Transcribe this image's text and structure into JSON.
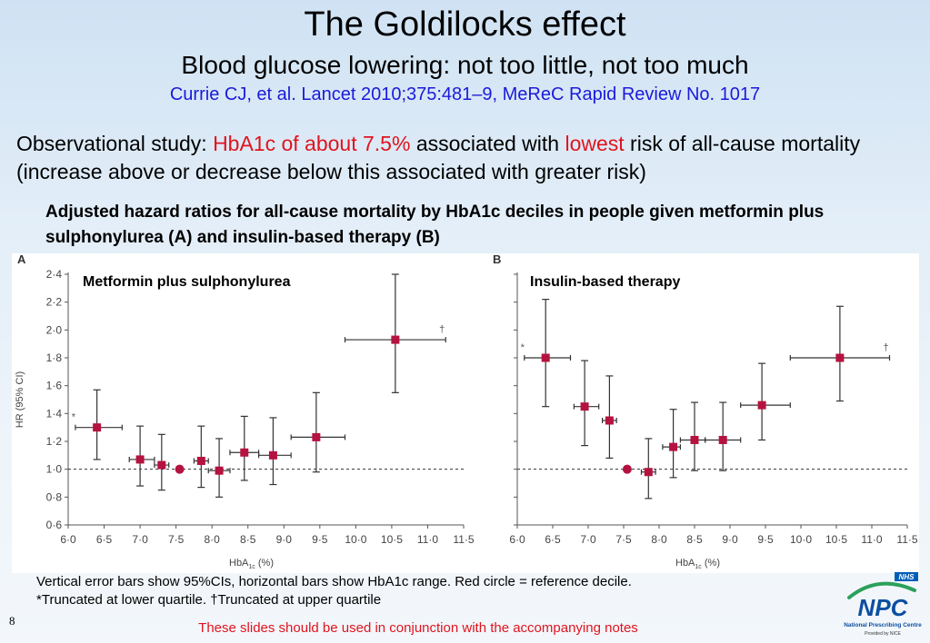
{
  "slide": {
    "title": "The Goldilocks effect",
    "subtitle": "Blood glucose lowering: not too little, not too much",
    "citation": "Currie CJ, et al. Lancet 2010;375:481–9, MeReC Rapid Review No. 1017",
    "statement": {
      "part1": "Observational study: ",
      "highlight1": "HbA1c of about 7.5%",
      "part2": " associated with ",
      "highlight2": "lowest",
      "part3": " risk of all-cause mortality (increase above or decrease below this associated with greater risk)"
    },
    "chart_heading": "Adjusted hazard ratios for all-cause mortality by HbA1c deciles in people given metformin plus sulphonylurea (A) and insulin-based therapy (B)",
    "footnote_line1": "Vertical error bars show 95%CIs, horizontal bars show HbA1c range. Red circle = reference decile.",
    "footnote_line2": "*Truncated at lower quartile. †Truncated at upper quartile",
    "slide_number": "8",
    "disclaimer": "These slides should be used in conjunction with the accompanying notes",
    "logo": {
      "badge": "NHS",
      "name": "NPC",
      "line1": "National Prescribing Centre",
      "line2": "Provided by NICE",
      "colors": {
        "badge": "#005eb8",
        "swoosh": "#2ca05a",
        "text": "#0b4fa0"
      }
    }
  },
  "chart_data": [
    {
      "type": "scatter",
      "panel_label": "A",
      "title": "Metformin plus sulphonylurea",
      "xlabel": "HbA",
      "xlabel_sub": "1c",
      "xlabel_unit": "(%)",
      "ylabel": "HR (95% CI)",
      "xlim": [
        6.0,
        11.5
      ],
      "ylim": [
        0.6,
        2.4
      ],
      "xticks": [
        "6·0",
        "6·5",
        "7·0",
        "7·5",
        "8·0",
        "8·5",
        "9·0",
        "9·5",
        "10·0",
        "10·5",
        "11·0",
        "11·5"
      ],
      "yticks": [
        "0·6",
        "0·8",
        "1·0",
        "1·2",
        "1·4",
        "1·6",
        "1·8",
        "2·0",
        "2·2",
        "2·4"
      ],
      "reference_line": 1.0,
      "points": [
        {
          "x": 6.4,
          "hr": 1.3,
          "ci_low": 1.07,
          "ci_high": 1.57,
          "x_low": 6.1,
          "x_high": 6.75,
          "marker": "square",
          "annotation": "*"
        },
        {
          "x": 7.0,
          "hr": 1.07,
          "ci_low": 0.88,
          "ci_high": 1.31,
          "x_low": 6.85,
          "x_high": 7.2,
          "marker": "square"
        },
        {
          "x": 7.3,
          "hr": 1.03,
          "ci_low": 0.85,
          "ci_high": 1.25,
          "x_low": 7.2,
          "x_high": 7.4,
          "marker": "square"
        },
        {
          "x": 7.55,
          "hr": 1.0,
          "marker": "circle"
        },
        {
          "x": 7.85,
          "hr": 1.06,
          "ci_low": 0.87,
          "ci_high": 1.31,
          "x_low": 7.75,
          "x_high": 7.95,
          "marker": "square"
        },
        {
          "x": 8.1,
          "hr": 0.99,
          "ci_low": 0.8,
          "ci_high": 1.22,
          "x_low": 7.95,
          "x_high": 8.25,
          "marker": "square"
        },
        {
          "x": 8.45,
          "hr": 1.12,
          "ci_low": 0.92,
          "ci_high": 1.38,
          "x_low": 8.25,
          "x_high": 8.65,
          "marker": "square"
        },
        {
          "x": 8.85,
          "hr": 1.1,
          "ci_low": 0.89,
          "ci_high": 1.37,
          "x_low": 8.65,
          "x_high": 9.1,
          "marker": "square"
        },
        {
          "x": 9.45,
          "hr": 1.23,
          "ci_low": 0.98,
          "ci_high": 1.55,
          "x_low": 9.1,
          "x_high": 9.85,
          "marker": "square"
        },
        {
          "x": 10.55,
          "hr": 1.93,
          "ci_low": 1.55,
          "ci_high": 2.4,
          "x_low": 9.85,
          "x_high": 11.25,
          "marker": "square",
          "annotation": "†"
        }
      ]
    },
    {
      "type": "scatter",
      "panel_label": "B",
      "title": "Insulin-based therapy",
      "xlabel": "HbA",
      "xlabel_sub": "1c",
      "xlabel_unit": "(%)",
      "ylabel": "",
      "xlim": [
        6.0,
        11.5
      ],
      "ylim": [
        0.6,
        2.4
      ],
      "xticks": [
        "6·0",
        "6·5",
        "7·0",
        "7·5",
        "8·0",
        "8·5",
        "9·0",
        "9·5",
        "10·0",
        "10·5",
        "11·0",
        "11·5"
      ],
      "yticks": [],
      "reference_line": 1.0,
      "points": [
        {
          "x": 6.4,
          "hr": 1.8,
          "ci_low": 1.45,
          "ci_high": 2.22,
          "x_low": 6.1,
          "x_high": 6.75,
          "marker": "square",
          "annotation": "*"
        },
        {
          "x": 6.95,
          "hr": 1.45,
          "ci_low": 1.17,
          "ci_high": 1.78,
          "x_low": 6.8,
          "x_high": 7.15,
          "marker": "square"
        },
        {
          "x": 7.3,
          "hr": 1.35,
          "ci_low": 1.08,
          "ci_high": 1.67,
          "x_low": 7.2,
          "x_high": 7.4,
          "marker": "square"
        },
        {
          "x": 7.55,
          "hr": 1.0,
          "marker": "circle"
        },
        {
          "x": 7.85,
          "hr": 0.98,
          "ci_low": 0.79,
          "ci_high": 1.22,
          "x_low": 7.75,
          "x_high": 7.95,
          "marker": "square"
        },
        {
          "x": 8.2,
          "hr": 1.16,
          "ci_low": 0.94,
          "ci_high": 1.43,
          "x_low": 8.05,
          "x_high": 8.3,
          "marker": "square"
        },
        {
          "x": 8.5,
          "hr": 1.21,
          "ci_low": 0.99,
          "ci_high": 1.48,
          "x_low": 8.3,
          "x_high": 8.65,
          "marker": "square"
        },
        {
          "x": 8.9,
          "hr": 1.21,
          "ci_low": 0.99,
          "ci_high": 1.48,
          "x_low": 8.65,
          "x_high": 9.15,
          "marker": "square"
        },
        {
          "x": 9.45,
          "hr": 1.46,
          "ci_low": 1.21,
          "ci_high": 1.76,
          "x_low": 9.15,
          "x_high": 9.85,
          "marker": "square"
        },
        {
          "x": 10.55,
          "hr": 1.8,
          "ci_low": 1.49,
          "ci_high": 2.17,
          "x_low": 9.85,
          "x_high": 11.25,
          "marker": "square",
          "annotation": "†"
        }
      ]
    }
  ]
}
